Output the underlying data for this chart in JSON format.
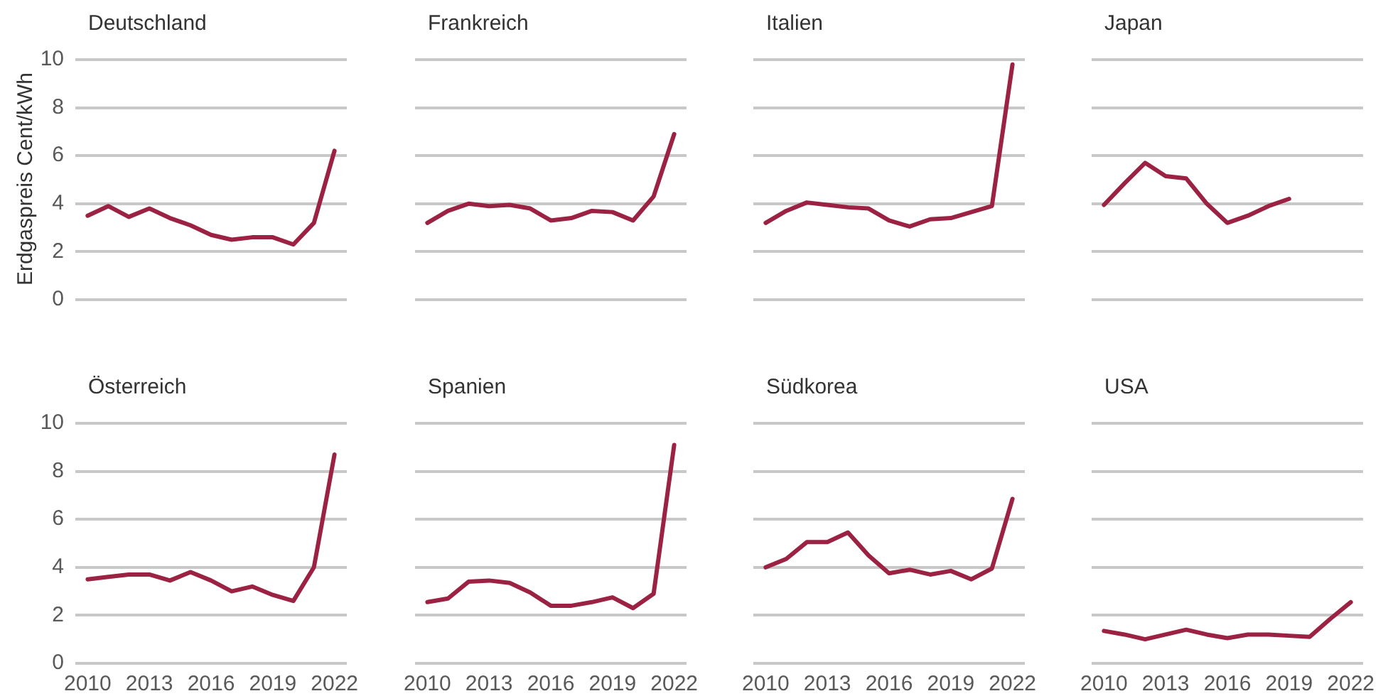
{
  "chart_data": [
    {
      "type": "line",
      "title": "Deutschland",
      "ylabel": "Erdgaspreis Cent/kWh",
      "x": [
        2010,
        2011,
        2012,
        2013,
        2014,
        2015,
        2016,
        2017,
        2018,
        2019,
        2020,
        2021,
        2022
      ],
      "color": "#9b2242",
      "values": [
        3.5,
        3.9,
        3.45,
        3.8,
        3.4,
        3.1,
        2.7,
        2.5,
        2.6,
        2.6,
        2.3,
        3.2,
        6.2
      ],
      "xlim": [
        2009.4,
        2022.6
      ],
      "xticks": [
        2010,
        2013,
        2016,
        2019,
        2022
      ],
      "ylim": [
        0,
        10
      ],
      "yticks": [
        0,
        2,
        4,
        6,
        8,
        10
      ],
      "grid": "y",
      "tick_labels": "y"
    },
    {
      "type": "line",
      "title": "Frankreich",
      "x": [
        2010,
        2011,
        2012,
        2013,
        2014,
        2015,
        2016,
        2017,
        2018,
        2019,
        2020,
        2021,
        2022
      ],
      "color": "#9b2242",
      "values": [
        3.2,
        3.7,
        4.0,
        3.9,
        3.95,
        3.8,
        3.3,
        3.4,
        3.7,
        3.65,
        3.3,
        4.3,
        6.9
      ],
      "xlim": [
        2009.4,
        2022.6
      ],
      "xticks": [
        2010,
        2013,
        2016,
        2019,
        2022
      ],
      "ylim": [
        0,
        10
      ],
      "yticks": [
        0,
        2,
        4,
        6,
        8,
        10
      ],
      "grid": "y",
      "tick_labels": false
    },
    {
      "type": "line",
      "title": "Italien",
      "x": [
        2010,
        2011,
        2012,
        2013,
        2014,
        2015,
        2016,
        2017,
        2018,
        2019,
        2020,
        2021,
        2022
      ],
      "color": "#9b2242",
      "values": [
        3.2,
        3.7,
        4.05,
        3.95,
        3.85,
        3.8,
        3.3,
        3.05,
        3.35,
        3.4,
        3.65,
        3.9,
        9.8
      ],
      "xlim": [
        2009.4,
        2022.6
      ],
      "xticks": [
        2010,
        2013,
        2016,
        2019,
        2022
      ],
      "ylim": [
        0,
        10
      ],
      "yticks": [
        0,
        2,
        4,
        6,
        8,
        10
      ],
      "grid": "y",
      "tick_labels": false
    },
    {
      "type": "line",
      "title": "Japan",
      "x": [
        2010,
        2011,
        2012,
        2013,
        2014,
        2015,
        2016,
        2017,
        2018,
        2019
      ],
      "color": "#9b2242",
      "values": [
        3.95,
        4.85,
        5.7,
        5.15,
        5.05,
        4.0,
        3.2,
        3.5,
        3.9,
        4.2
      ],
      "xlim": [
        2009.4,
        2022.6
      ],
      "xticks": [
        2010,
        2013,
        2016,
        2019,
        2022
      ],
      "ylim": [
        0,
        10
      ],
      "yticks": [
        0,
        2,
        4,
        6,
        8,
        10
      ],
      "grid": "y",
      "tick_labels": false
    },
    {
      "type": "line",
      "title": "Österreich",
      "x": [
        2010,
        2011,
        2012,
        2013,
        2014,
        2015,
        2016,
        2017,
        2018,
        2019,
        2020,
        2021,
        2022
      ],
      "color": "#9b2242",
      "values": [
        3.5,
        3.6,
        3.7,
        3.7,
        3.45,
        3.8,
        3.45,
        3.0,
        3.2,
        2.85,
        2.6,
        4.0,
        8.7
      ],
      "xlim": [
        2009.4,
        2022.6
      ],
      "xticks": [
        2010,
        2013,
        2016,
        2019,
        2022
      ],
      "ylim": [
        0,
        10
      ],
      "yticks": [
        0,
        2,
        4,
        6,
        8,
        10
      ],
      "grid": "y"
    },
    {
      "type": "line",
      "title": "Spanien",
      "x": [
        2010,
        2011,
        2012,
        2013,
        2014,
        2015,
        2016,
        2017,
        2018,
        2019,
        2020,
        2021,
        2022
      ],
      "color": "#9b2242",
      "values": [
        2.55,
        2.7,
        3.4,
        3.45,
        3.35,
        2.95,
        2.4,
        2.4,
        2.55,
        2.75,
        2.3,
        2.9,
        9.1
      ],
      "xlim": [
        2009.4,
        2022.6
      ],
      "xticks": [
        2010,
        2013,
        2016,
        2019,
        2022
      ],
      "ylim": [
        0,
        10
      ],
      "yticks": [
        0,
        2,
        4,
        6,
        8,
        10
      ],
      "grid": "y",
      "tick_labels": "x"
    },
    {
      "type": "line",
      "title": "Südkorea",
      "x": [
        2010,
        2011,
        2012,
        2013,
        2014,
        2015,
        2016,
        2017,
        2018,
        2019,
        2020,
        2021,
        2022
      ],
      "color": "#9b2242",
      "values": [
        4.0,
        4.35,
        5.05,
        5.05,
        5.45,
        4.5,
        3.75,
        3.9,
        3.7,
        3.85,
        3.5,
        3.95,
        6.85
      ],
      "xlim": [
        2009.4,
        2022.6
      ],
      "xticks": [
        2010,
        2013,
        2016,
        2019,
        2022
      ],
      "ylim": [
        0,
        10
      ],
      "yticks": [
        0,
        2,
        4,
        6,
        8,
        10
      ],
      "grid": "y",
      "tick_labels": "x"
    },
    {
      "type": "line",
      "title": "USA",
      "x": [
        2010,
        2011,
        2012,
        2013,
        2014,
        2015,
        2016,
        2017,
        2018,
        2019,
        2020,
        2021,
        2022
      ],
      "color": "#9b2242",
      "values": [
        1.35,
        1.2,
        1.0,
        1.2,
        1.4,
        1.2,
        1.05,
        1.2,
        1.2,
        1.15,
        1.1,
        1.85,
        2.55
      ],
      "xlim": [
        2009.4,
        2022.6
      ],
      "xticks": [
        2010,
        2013,
        2016,
        2019,
        2022
      ],
      "ylim": [
        0,
        10
      ],
      "yticks": [
        0,
        2,
        4,
        6,
        8,
        10
      ],
      "grid": "y",
      "tick_labels": "x"
    }
  ]
}
